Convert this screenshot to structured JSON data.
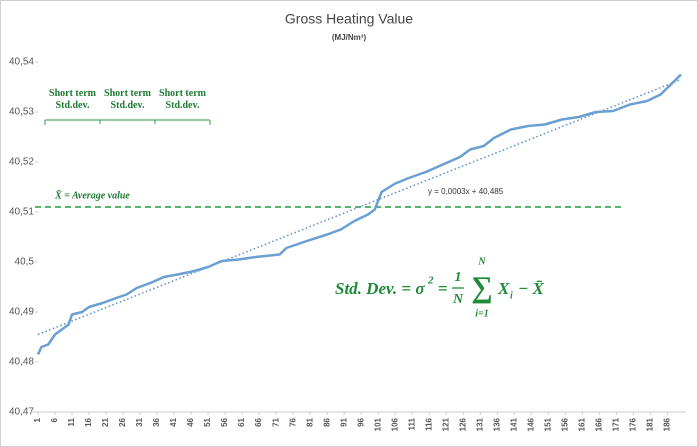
{
  "chart_data": {
    "type": "line",
    "title": "Gross Heating Value",
    "subtitle": "(MJ/Nm³)",
    "x": [
      1,
      2,
      4,
      6,
      8,
      10,
      11,
      14,
      16,
      20,
      24,
      27,
      30,
      34,
      38,
      42,
      47,
      51,
      55,
      60,
      65,
      72,
      74,
      80,
      86,
      90,
      94,
      98,
      100,
      102,
      106,
      110,
      115,
      120,
      125,
      128,
      132,
      135,
      140,
      145,
      150,
      155,
      160,
      165,
      170,
      175,
      180,
      184,
      187,
      190
    ],
    "series": [
      {
        "name": "Gross Heating Value",
        "color": "#6a9fd4",
        "values": [
          40.4815,
          40.483,
          40.4835,
          40.4855,
          40.4865,
          40.4875,
          40.4895,
          40.49,
          40.491,
          40.4918,
          40.4928,
          40.4935,
          40.4948,
          40.4958,
          40.497,
          40.4975,
          40.4982,
          40.499,
          40.5002,
          40.5005,
          40.501,
          40.5015,
          40.5028,
          40.5042,
          40.5055,
          40.5065,
          40.5082,
          40.5095,
          40.5105,
          40.514,
          40.5157,
          40.5168,
          40.518,
          40.5195,
          40.521,
          40.5225,
          40.5232,
          40.5248,
          40.5265,
          40.5272,
          40.5275,
          40.5285,
          40.529,
          40.53,
          40.5302,
          40.5315,
          40.5322,
          40.5335,
          40.5355,
          40.5375
        ]
      }
    ],
    "trendline": {
      "x": [
        1,
        190
      ],
      "values": [
        40.4855,
        40.5365
      ],
      "color": "#5b8fc9",
      "label": "y = 0,0003x + 40,485"
    },
    "average": {
      "value": 40.511,
      "color": "#1f9e3a",
      "label": "X̄ = Average value"
    },
    "short_term_labels": [
      "Short term Std.dev.",
      "Short term Std.dev.",
      "Short term Std.dev."
    ],
    "formula": {
      "lhs": "Std. Dev. = σ",
      "power": "2",
      "eq": "=",
      "num": "1",
      "den": "N",
      "top": "N",
      "sigma": "∑",
      "bottom": "i=1",
      "term": "X",
      "sub": "i",
      "tail": "− X̄"
    },
    "xlim": [
      1,
      190
    ],
    "xticks": [
      1,
      6,
      11,
      16,
      21,
      26,
      31,
      36,
      41,
      46,
      51,
      56,
      61,
      66,
      71,
      76,
      81,
      86,
      91,
      96,
      101,
      106,
      111,
      116,
      121,
      126,
      131,
      136,
      141,
      146,
      151,
      156,
      161,
      166,
      171,
      176,
      181,
      186
    ],
    "ylim": [
      40.47,
      40.54
    ],
    "yticks": [
      {
        "value": 40.47,
        "label": "40,47"
      },
      {
        "value": 40.48,
        "label": "40,48"
      },
      {
        "value": 40.49,
        "label": "40,49"
      },
      {
        "value": 40.5,
        "label": "40,5"
      },
      {
        "value": 40.51,
        "label": "40,51"
      },
      {
        "value": 40.52,
        "label": "40,52"
      },
      {
        "value": 40.53,
        "label": "40,53"
      },
      {
        "value": 40.54,
        "label": "40,54"
      }
    ],
    "grid": false
  }
}
